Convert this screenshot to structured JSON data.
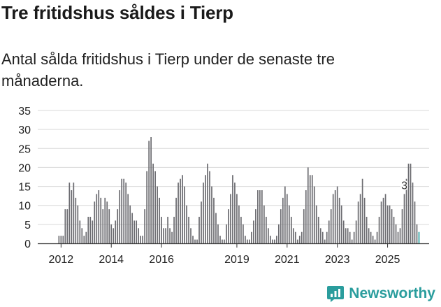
{
  "header": {
    "title": "Tre fritidshus såldes i Tierp",
    "subtitle": "Antal sålda fritidshus i Tierp under de senaste tre månaderna."
  },
  "brand": {
    "name": "Newsworthy"
  },
  "colors": {
    "bar": "#6b6b70",
    "highlight": "#2a9d9d",
    "grid": "#d9d9d9",
    "text": "#222222"
  },
  "chart_data": {
    "type": "bar",
    "title": "Tre fritidshus såldes i Tierp",
    "subtitle": "Antal sålda fritidshus i Tierp under de senaste tre månaderna.",
    "xlabel": "",
    "ylabel": "",
    "ylim": [
      0,
      35
    ],
    "yticks": [
      0,
      5,
      10,
      15,
      20,
      25,
      30,
      35
    ],
    "xticks": [
      "2012",
      "2014",
      "2016",
      "2019",
      "2021",
      "2023",
      "2025"
    ],
    "xtick_index": [
      1,
      25,
      49,
      85,
      109,
      133,
      157
    ],
    "start": "2012-01",
    "interval": "month",
    "annotation": {
      "text": "3",
      "index": 165
    },
    "values": [
      2,
      2,
      2,
      9,
      9,
      16,
      14,
      16,
      12,
      10,
      6,
      4,
      2,
      3,
      7,
      7,
      6,
      11,
      13,
      14,
      12,
      9,
      12,
      11,
      9,
      5,
      4,
      6,
      9,
      14,
      17,
      17,
      16,
      13,
      10,
      8,
      6,
      6,
      4,
      2,
      2,
      9,
      19,
      27,
      28,
      21,
      19,
      15,
      12,
      7,
      4,
      4,
      7,
      4,
      3,
      7,
      12,
      16,
      17,
      18,
      15,
      10,
      7,
      4,
      2,
      1,
      1,
      7,
      11,
      16,
      18,
      21,
      19,
      15,
      12,
      8,
      5,
      2,
      1,
      1,
      5,
      9,
      13,
      18,
      16,
      13,
      10,
      7,
      5,
      2,
      1,
      1,
      3,
      6,
      9,
      14,
      14,
      14,
      10,
      7,
      4,
      2,
      1,
      1,
      2,
      5,
      9,
      12,
      15,
      13,
      10,
      7,
      4,
      3,
      1,
      2,
      3,
      9,
      14,
      20,
      18,
      18,
      15,
      10,
      7,
      4,
      3,
      1,
      3,
      6,
      9,
      13,
      14,
      15,
      12,
      10,
      6,
      4,
      4,
      3,
      1,
      3,
      6,
      11,
      13,
      17,
      12,
      7,
      4,
      3,
      2,
      1,
      3,
      7,
      11,
      12,
      13,
      10,
      10,
      9,
      7,
      5,
      3,
      4,
      9,
      13,
      17,
      21,
      21,
      16,
      11,
      5,
      3
    ]
  }
}
